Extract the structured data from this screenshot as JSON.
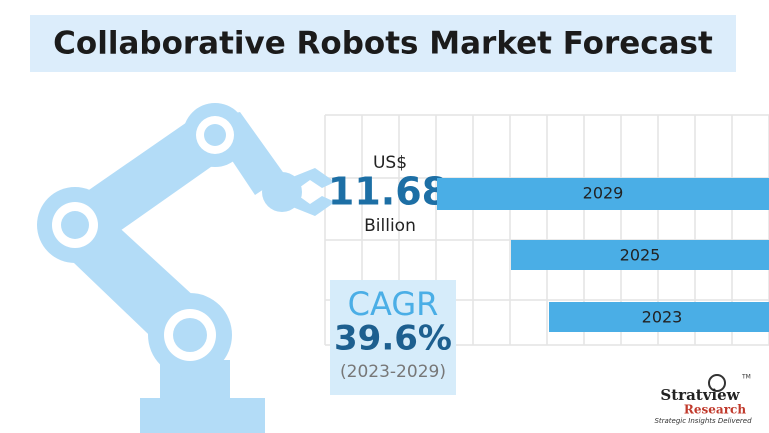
{
  "title": "Collaborative Robots Market Forecast",
  "market_size": {
    "currency": "US$",
    "value": "11.68",
    "unit": "Billion"
  },
  "bars": [
    {
      "label": "2029"
    },
    {
      "label": "2025"
    },
    {
      "label": "2023"
    }
  ],
  "cagr": {
    "label": "CAGR",
    "value": "39.6%",
    "period": "(2023-2029)"
  },
  "logo": {
    "name": "Stratview",
    "sub": "Research",
    "tagline": "Strategic Insights Delivered",
    "tm": "TM"
  }
}
